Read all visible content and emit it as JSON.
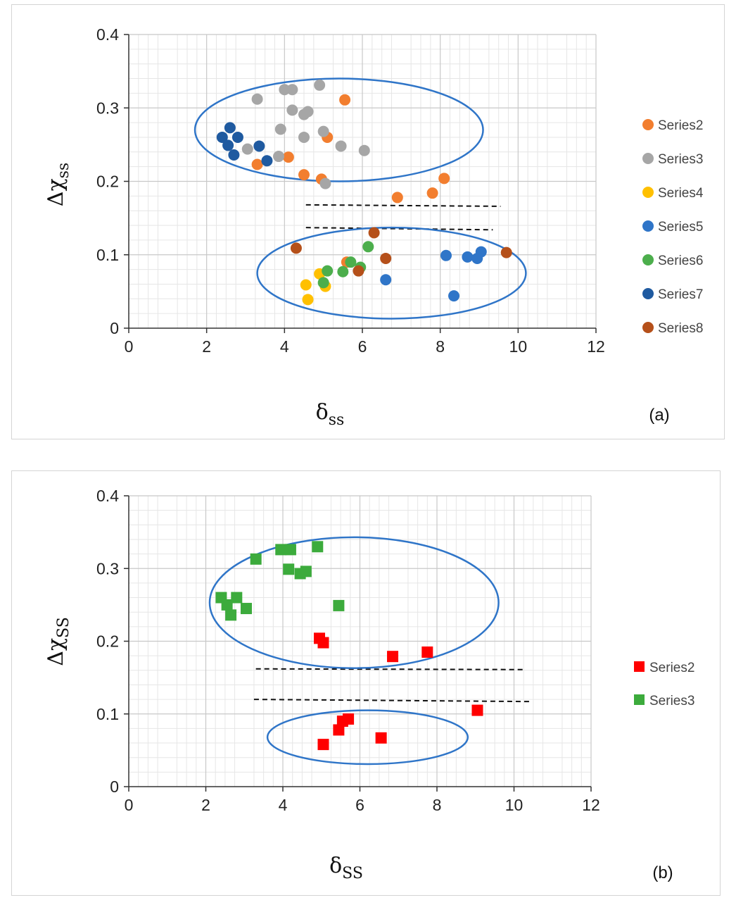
{
  "chart_data": [
    {
      "type": "scatter",
      "panel_label": "(a)",
      "title": "",
      "xlabel": {
        "symbol": "δ",
        "sub": "ss"
      },
      "ylabel": {
        "symbol": "Δχ",
        "sub": "ss"
      },
      "xlim": [
        0,
        12
      ],
      "ylim": [
        0,
        0.4
      ],
      "x_ticks": [
        0,
        2,
        4,
        6,
        8,
        10,
        12
      ],
      "y_ticks": [
        0,
        0.1,
        0.2,
        0.3,
        0.4
      ],
      "x_tick_labels": [
        "0",
        "2",
        "4",
        "6",
        "8",
        "10",
        "12"
      ],
      "y_tick_labels": [
        "0",
        "0.1",
        "0.2",
        "0.3",
        "0.4"
      ],
      "grid": true,
      "marker": "circle",
      "legend_position": "right",
      "series": [
        {
          "name": "Series2",
          "color": "#f27e2f",
          "points": [
            [
              5.55,
              0.311
            ],
            [
              3.3,
              0.223
            ],
            [
              4.1,
              0.233
            ],
            [
              4.5,
              0.209
            ],
            [
              4.95,
              0.203
            ],
            [
              5.1,
              0.26
            ],
            [
              6.9,
              0.178
            ],
            [
              7.8,
              0.184
            ],
            [
              8.1,
              0.204
            ],
            [
              5.6,
              0.09
            ]
          ]
        },
        {
          "name": "Series3",
          "color": "#a6a6a6",
          "points": [
            [
              3.3,
              0.312
            ],
            [
              4.0,
              0.325
            ],
            [
              4.2,
              0.325
            ],
            [
              4.9,
              0.331
            ],
            [
              4.2,
              0.297
            ],
            [
              4.5,
              0.291
            ],
            [
              4.6,
              0.295
            ],
            [
              3.9,
              0.271
            ],
            [
              4.5,
              0.26
            ],
            [
              5.0,
              0.268
            ],
            [
              3.05,
              0.244
            ],
            [
              3.85,
              0.234
            ],
            [
              5.45,
              0.248
            ],
            [
              6.05,
              0.242
            ],
            [
              5.05,
              0.197
            ]
          ]
        },
        {
          "name": "Series4",
          "color": "#ffc000",
          "points": [
            [
              4.55,
              0.059
            ],
            [
              4.6,
              0.039
            ],
            [
              4.9,
              0.074
            ],
            [
              5.05,
              0.057
            ]
          ]
        },
        {
          "name": "Series5",
          "color": "#2f75c8",
          "points": [
            [
              6.6,
              0.066
            ],
            [
              8.15,
              0.099
            ],
            [
              8.35,
              0.044
            ],
            [
              8.7,
              0.097
            ],
            [
              8.95,
              0.095
            ],
            [
              9.05,
              0.104
            ]
          ]
        },
        {
          "name": "Series6",
          "color": "#4cae4c",
          "points": [
            [
              5.0,
              0.062
            ],
            [
              5.1,
              0.078
            ],
            [
              5.5,
              0.077
            ],
            [
              5.7,
              0.09
            ],
            [
              5.95,
              0.083
            ],
            [
              6.15,
              0.111
            ]
          ]
        },
        {
          "name": "Series7",
          "color": "#1f5aa0",
          "points": [
            [
              2.4,
              0.26
            ],
            [
              2.55,
              0.249
            ],
            [
              2.6,
              0.273
            ],
            [
              2.7,
              0.236
            ],
            [
              2.8,
              0.26
            ],
            [
              3.35,
              0.248
            ],
            [
              3.55,
              0.228
            ]
          ]
        },
        {
          "name": "Series8",
          "color": "#b5501a",
          "points": [
            [
              4.3,
              0.109
            ],
            [
              5.9,
              0.078
            ],
            [
              6.3,
              0.13
            ],
            [
              6.6,
              0.095
            ],
            [
              9.7,
              0.103
            ]
          ]
        }
      ],
      "annotations": {
        "ellipses": [
          {
            "cx": 5.4,
            "cy": 0.27,
            "rx": 3.7,
            "ry": 0.07,
            "color": "#2f75c8"
          },
          {
            "cx": 6.75,
            "cy": 0.075,
            "rx": 3.45,
            "ry": 0.062,
            "color": "#2f75c8"
          }
        ],
        "dashed_lines": [
          {
            "x1": 4.55,
            "y1": 0.168,
            "x2": 9.55,
            "y2": 0.166
          },
          {
            "x1": 4.55,
            "y1": 0.137,
            "x2": 9.35,
            "y2": 0.134
          }
        ]
      }
    },
    {
      "type": "scatter",
      "panel_label": "(b)",
      "title": "",
      "xlabel": {
        "symbol": "δ",
        "sub": "SS"
      },
      "ylabel": {
        "symbol": "Δχ",
        "sub": "SS"
      },
      "xlim": [
        0,
        12
      ],
      "ylim": [
        0,
        0.4
      ],
      "x_ticks": [
        0,
        2,
        4,
        6,
        8,
        10,
        12
      ],
      "y_ticks": [
        0,
        0.1,
        0.2,
        0.3,
        0.4
      ],
      "x_tick_labels": [
        "0",
        "2",
        "4",
        "6",
        "8",
        "10",
        "12"
      ],
      "y_tick_labels": [
        "0",
        "0.1",
        "0.2",
        "0.3",
        "0.4"
      ],
      "grid": true,
      "marker": "square",
      "legend_position": "right",
      "series": [
        {
          "name": "Series2",
          "color": "#ff0000",
          "points": [
            [
              4.95,
              0.204
            ],
            [
              5.05,
              0.198
            ],
            [
              5.05,
              0.058
            ],
            [
              5.45,
              0.078
            ],
            [
              5.55,
              0.09
            ],
            [
              5.7,
              0.093
            ],
            [
              6.55,
              0.067
            ],
            [
              6.85,
              0.179
            ],
            [
              7.75,
              0.185
            ],
            [
              9.05,
              0.105
            ]
          ]
        },
        {
          "name": "Series3",
          "color": "#3cab3c",
          "points": [
            [
              2.4,
              0.26
            ],
            [
              2.55,
              0.25
            ],
            [
              2.65,
              0.236
            ],
            [
              2.8,
              0.26
            ],
            [
              3.05,
              0.245
            ],
            [
              3.3,
              0.313
            ],
            [
              3.95,
              0.326
            ],
            [
              4.2,
              0.326
            ],
            [
              4.15,
              0.299
            ],
            [
              4.45,
              0.293
            ],
            [
              4.6,
              0.296
            ],
            [
              4.9,
              0.33
            ],
            [
              5.45,
              0.249
            ]
          ]
        }
      ],
      "annotations": {
        "ellipses": [
          {
            "cx": 5.85,
            "cy": 0.253,
            "rx": 3.75,
            "ry": 0.09,
            "color": "#2f75c8"
          },
          {
            "cx": 6.2,
            "cy": 0.068,
            "rx": 2.6,
            "ry": 0.037,
            "color": "#2f75c8"
          }
        ],
        "dashed_lines": [
          {
            "x1": 3.3,
            "y1": 0.162,
            "x2": 10.25,
            "y2": 0.161
          },
          {
            "x1": 3.25,
            "y1": 0.12,
            "x2": 10.45,
            "y2": 0.117
          }
        ]
      }
    }
  ]
}
